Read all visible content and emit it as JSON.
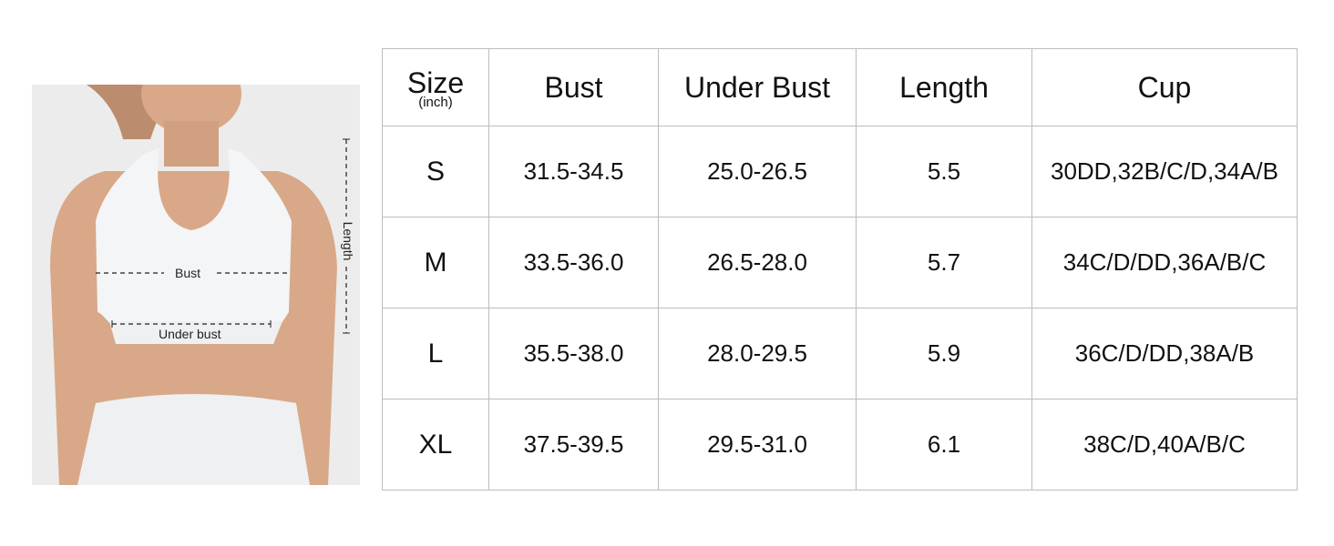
{
  "photo": {
    "labels": {
      "bust": "Bust",
      "under_bust": "Under bust",
      "length": "Length"
    },
    "colors": {
      "background": "#ececec",
      "skin": "#d9a888",
      "garment": "#f3f5f6",
      "hair": "#a8643a"
    }
  },
  "table": {
    "headers": {
      "size": "Size",
      "size_unit": "(inch)",
      "bust": "Bust",
      "under_bust": "Under Bust",
      "length": "Length",
      "cup": "Cup"
    },
    "rows": [
      {
        "size": "S",
        "bust": "31.5-34.5",
        "under_bust": "25.0-26.5",
        "length": "5.5",
        "cup": "30DD,32B/C/D,34A/B"
      },
      {
        "size": "M",
        "bust": "33.5-36.0",
        "under_bust": "26.5-28.0",
        "length": "5.7",
        "cup": "34C/D/DD,36A/B/C"
      },
      {
        "size": "L",
        "bust": "35.5-38.0",
        "under_bust": "28.0-29.5",
        "length": "5.9",
        "cup": "36C/D/DD,38A/B"
      },
      {
        "size": "XL",
        "bust": "37.5-39.5",
        "under_bust": "29.5-31.0",
        "length": "6.1",
        "cup": "38C/D,40A/B/C"
      }
    ]
  }
}
